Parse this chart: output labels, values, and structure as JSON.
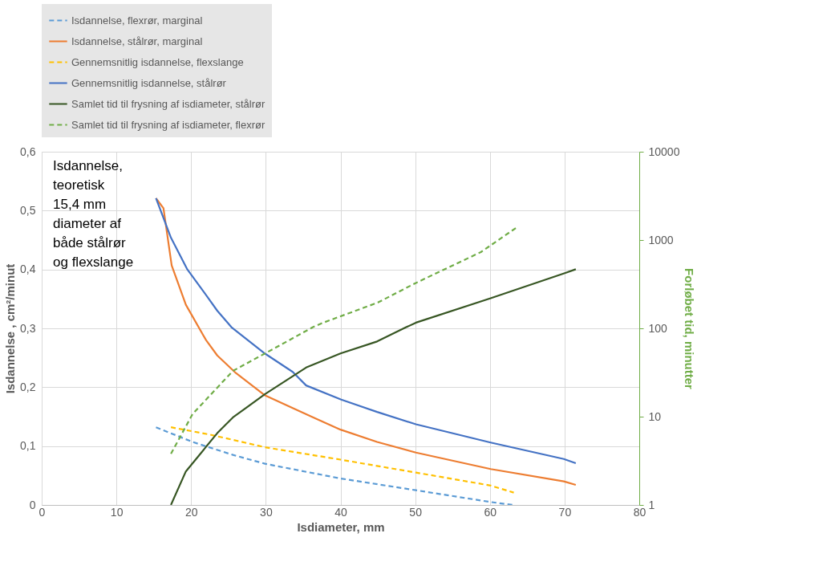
{
  "chart_data": {
    "type": "line",
    "xlabel": "Isdiameter, mm",
    "ylabel": "Isdannelse , cm²/minut",
    "y2label": "Forløbet tid, minutter",
    "annotations": [
      "Isdannelse, teoretisk",
      "15,4 mm diameter af både stålrør og flexslange"
    ],
    "xlim": [
      0,
      80
    ],
    "xticks": [
      0,
      10,
      20,
      30,
      40,
      50,
      60,
      70,
      80
    ],
    "ylim": [
      0,
      0.6
    ],
    "yticks": [
      0,
      {
        "value": 0.1,
        "label": "0,1"
      },
      {
        "value": 0.2,
        "label": "0,2"
      },
      {
        "value": 0.3,
        "label": "0,3"
      },
      {
        "value": 0.4,
        "label": "0,4"
      },
      {
        "value": 0.5,
        "label": "0,5"
      },
      {
        "value": 0.6,
        "label": "0,6"
      }
    ],
    "y2lim": [
      1,
      10000
    ],
    "y2ticks": [
      1,
      10,
      100,
      1000,
      10000
    ],
    "log": "y2",
    "grid": true,
    "legend": "top",
    "series": [
      {
        "name": "Isdannelse, flexrør, marginal",
        "color": "#5b9bd5",
        "line_style": "dashed",
        "x": [
          15.3,
          20.2,
          25.6,
          29.9,
          40.0,
          50.1,
          60.1,
          63.1
        ],
        "values": [
          0.132,
          0.107,
          0.085,
          0.07,
          0.045,
          0.025,
          0.005,
          0.0
        ]
      },
      {
        "name": "Isdannelse, stålrør, marginal",
        "color": "#ed7d31",
        "line_style": "solid",
        "x": [
          15.3,
          16.3,
          17.4,
          19.3,
          22.0,
          23.5,
          26.0,
          29.9,
          36.3,
          40.0,
          44.9,
          50.1,
          60.1,
          69.9,
          71.5
        ],
        "values": [
          0.521,
          0.504,
          0.407,
          0.34,
          0.28,
          0.254,
          0.224,
          0.186,
          0.149,
          0.128,
          0.107,
          0.089,
          0.061,
          0.04,
          0.034
        ]
      },
      {
        "name": "Gennemsnitlig isdannelse, flexslange",
        "color": "#ffc000",
        "line_style": "dashed",
        "x": [
          17.3,
          22.7,
          29.9,
          40.0,
          50.1,
          60.1,
          63.2
        ],
        "values": [
          0.132,
          0.119,
          0.098,
          0.077,
          0.055,
          0.033,
          0.021
        ]
      },
      {
        "name": "Gennemsnitlig isdannelse, stålrør",
        "color": "#4472c4",
        "line_style": "solid",
        "x": [
          15.3,
          17.3,
          19.5,
          21.7,
          23.5,
          25.4,
          29.9,
          33.6,
          35.4,
          40.1,
          44.9,
          50.1,
          60.1,
          69.9,
          71.5
        ],
        "values": [
          0.521,
          0.454,
          0.4,
          0.362,
          0.33,
          0.302,
          0.257,
          0.226,
          0.203,
          0.179,
          0.158,
          0.137,
          0.106,
          0.078,
          0.071
        ]
      },
      {
        "name": "Samlet tid til frysning af isdiameter, stålrør",
        "color": "#375623",
        "line_style": "solid",
        "axis": "y2",
        "x": [
          17.3,
          19.3,
          23.5,
          25.6,
          29.9,
          35.4,
          40.0,
          44.9,
          48.8,
          50.1,
          60.1,
          70.1,
          71.5
        ],
        "values": [
          1,
          2.4,
          6.5,
          9.8,
          18,
          36,
          52,
          71,
          103,
          116,
          219,
          424,
          467
        ]
      },
      {
        "name": "Samlet tid til frysning af isdiameter, flexrør",
        "color": "#70ad47",
        "line_style": "dashed",
        "axis": "y2",
        "x": [
          17.3,
          20.2,
          25.6,
          29.9,
          36.3,
          37.7,
          45.0,
          50.1,
          58.8,
          63.6
        ],
        "values": [
          3.8,
          10.7,
          33,
          52,
          103,
          116,
          196,
          327,
          731,
          1390
        ]
      }
    ]
  }
}
